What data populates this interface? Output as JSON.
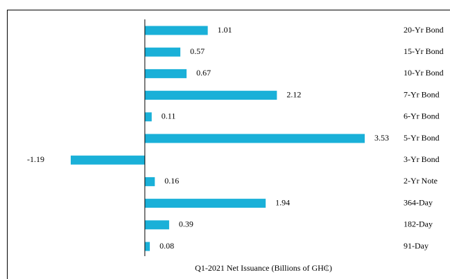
{
  "chart_data": {
    "type": "bar",
    "orientation": "horizontal",
    "x_label": "Q1-2021  Net Issuance (Billions  of GH₵)",
    "categories": [
      "20-Yr Bond",
      "15-Yr Bond",
      "10-Yr Bond",
      "7-Yr Bond",
      "6-Yr Bond",
      "5-Yr Bond",
      "3-Yr Bond",
      "2-Yr Note",
      "364-Day",
      "182-Day",
      "91-Day"
    ],
    "values": [
      1.01,
      0.57,
      0.67,
      2.12,
      0.11,
      3.53,
      -1.19,
      0.16,
      1.94,
      0.39,
      0.08
    ],
    "color": "#1ab0d8"
  }
}
